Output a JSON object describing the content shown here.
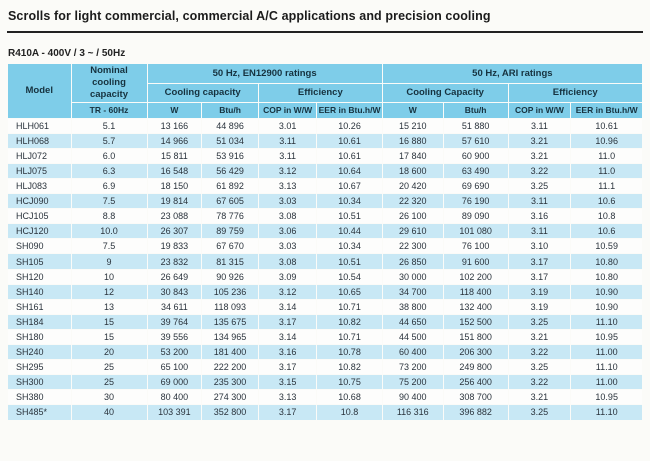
{
  "page": {
    "title": "Scrolls for light commercial, commercial A/C applications and precision cooling",
    "subtitle": "R410A - 400V / 3 ~ / 50Hz"
  },
  "colors": {
    "header_bg": "#7ecde9",
    "stripe_bg": "#c8e8f5",
    "row_bg": "#fdfdfc",
    "header_text": "#16323f",
    "body_text": "#2a333c",
    "title_rule": "#222222"
  },
  "table": {
    "header": {
      "model": "Model",
      "nominal": "Nominal cooling capacity",
      "nominal_unit": "TR - 60Hz",
      "groups": [
        {
          "label": "50 Hz, EN12900 ratings",
          "subgroups": [
            {
              "label": "Cooling capacity",
              "cols": [
                "W",
                "Btu/h"
              ]
            },
            {
              "label": "Efficiency",
              "cols": [
                "COP in W/W",
                "EER in Btu.h/W"
              ]
            }
          ]
        },
        {
          "label": "50 Hz, ARI ratings",
          "subgroups": [
            {
              "label": "Cooling Capacity",
              "cols": [
                "W",
                "Btu/h"
              ]
            },
            {
              "label": "Efficiency",
              "cols": [
                "COP in W/W",
                "EER in Btu.h/W"
              ]
            }
          ]
        }
      ]
    },
    "rows": [
      [
        "HLH061",
        "5.1",
        "13 166",
        "44 896",
        "3.01",
        "10.26",
        "15 210",
        "51 880",
        "3.11",
        "10.61"
      ],
      [
        "HLH068",
        "5.7",
        "14 966",
        "51 034",
        "3.11",
        "10.61",
        "16 880",
        "57 610",
        "3.21",
        "10.96"
      ],
      [
        "HLJ072",
        "6.0",
        "15 811",
        "53 916",
        "3.11",
        "10.61",
        "17 840",
        "60 900",
        "3.21",
        "11.0"
      ],
      [
        "HLJ075",
        "6.3",
        "16 548",
        "56 429",
        "3.12",
        "10.64",
        "18 600",
        "63 490",
        "3.22",
        "11.0"
      ],
      [
        "HLJ083",
        "6.9",
        "18 150",
        "61 892",
        "3.13",
        "10.67",
        "20 420",
        "69 690",
        "3.25",
        "11.1"
      ],
      [
        "HCJ090",
        "7.5",
        "19 814",
        "67 605",
        "3.03",
        "10.34",
        "22 320",
        "76 190",
        "3.11",
        "10.6"
      ],
      [
        "HCJ105",
        "8.8",
        "23 088",
        "78 776",
        "3.08",
        "10.51",
        "26 100",
        "89 090",
        "3.16",
        "10.8"
      ],
      [
        "HCJ120",
        "10.0",
        "26 307",
        "89 759",
        "3.06",
        "10.44",
        "29 610",
        "101 080",
        "3.11",
        "10.6"
      ],
      [
        "SH090",
        "7.5",
        "19 833",
        "67 670",
        "3.03",
        "10.34",
        "22 300",
        "76 100",
        "3.10",
        "10.59"
      ],
      [
        "SH105",
        "9",
        "23 832",
        "81 315",
        "3.08",
        "10.51",
        "26 850",
        "91 600",
        "3.17",
        "10.80"
      ],
      [
        "SH120",
        "10",
        "26 649",
        "90 926",
        "3.09",
        "10.54",
        "30 000",
        "102 200",
        "3.17",
        "10.80"
      ],
      [
        "SH140",
        "12",
        "30 843",
        "105 236",
        "3.12",
        "10.65",
        "34 700",
        "118 400",
        "3.19",
        "10.90"
      ],
      [
        "SH161",
        "13",
        "34 611",
        "118 093",
        "3.14",
        "10.71",
        "38 800",
        "132 400",
        "3.19",
        "10.90"
      ],
      [
        "SH184",
        "15",
        "39 764",
        "135 675",
        "3.17",
        "10.82",
        "44 650",
        "152 500",
        "3.25",
        "11.10"
      ],
      [
        "SH180",
        "15",
        "39 556",
        "134 965",
        "3.14",
        "10.71",
        "44 500",
        "151 800",
        "3.21",
        "10.95"
      ],
      [
        "SH240",
        "20",
        "53 200",
        "181 400",
        "3.16",
        "10.78",
        "60 400",
        "206 300",
        "3.22",
        "11.00"
      ],
      [
        "SH295",
        "25",
        "65 100",
        "222 200",
        "3.17",
        "10.82",
        "73 200",
        "249 800",
        "3.25",
        "11.10"
      ],
      [
        "SH300",
        "25",
        "69 000",
        "235 300",
        "3.15",
        "10.75",
        "75 200",
        "256 400",
        "3.22",
        "11.00"
      ],
      [
        "SH380",
        "30",
        "80 400",
        "274 300",
        "3.13",
        "10.68",
        "90 400",
        "308 700",
        "3.21",
        "10.95"
      ],
      [
        "SH485*",
        "40",
        "103 391",
        "352 800",
        "3.17",
        "10.8",
        "116 316",
        "396 882",
        "3.25",
        "11.10"
      ]
    ]
  }
}
